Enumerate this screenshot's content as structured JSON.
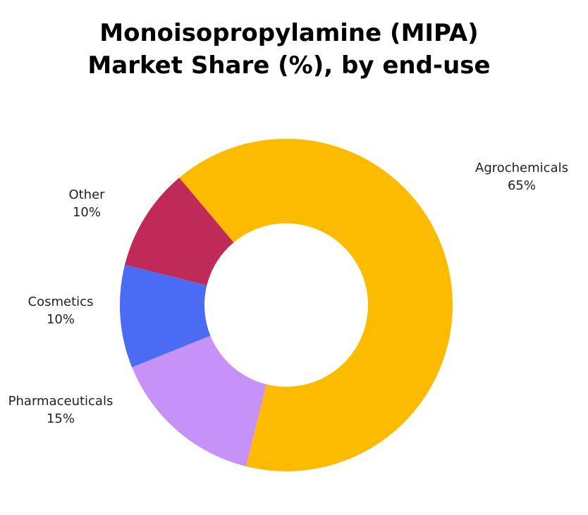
{
  "title_lines": [
    "Monoisopropylamine (MIPA)",
    "Market Share (%), by end-use"
  ],
  "chart_data": {
    "type": "pie",
    "donut": true,
    "title": "Monoisopropylamine (MIPA) Market Share (%), by end-use",
    "unit": "%",
    "slices": [
      {
        "label": "Agrochemicals",
        "value": 65,
        "value_label": "65%",
        "color": "#FDBB00"
      },
      {
        "label": "Pharmaceuticals",
        "value": 15,
        "value_label": "15%",
        "color": "#C792F7"
      },
      {
        "label": "Cosmetics",
        "value": 10,
        "value_label": "10%",
        "color": "#4A6CF5"
      },
      {
        "label": "Other",
        "value": 10,
        "value_label": "10%",
        "color": "#BF2A58"
      }
    ],
    "legend": "none"
  }
}
